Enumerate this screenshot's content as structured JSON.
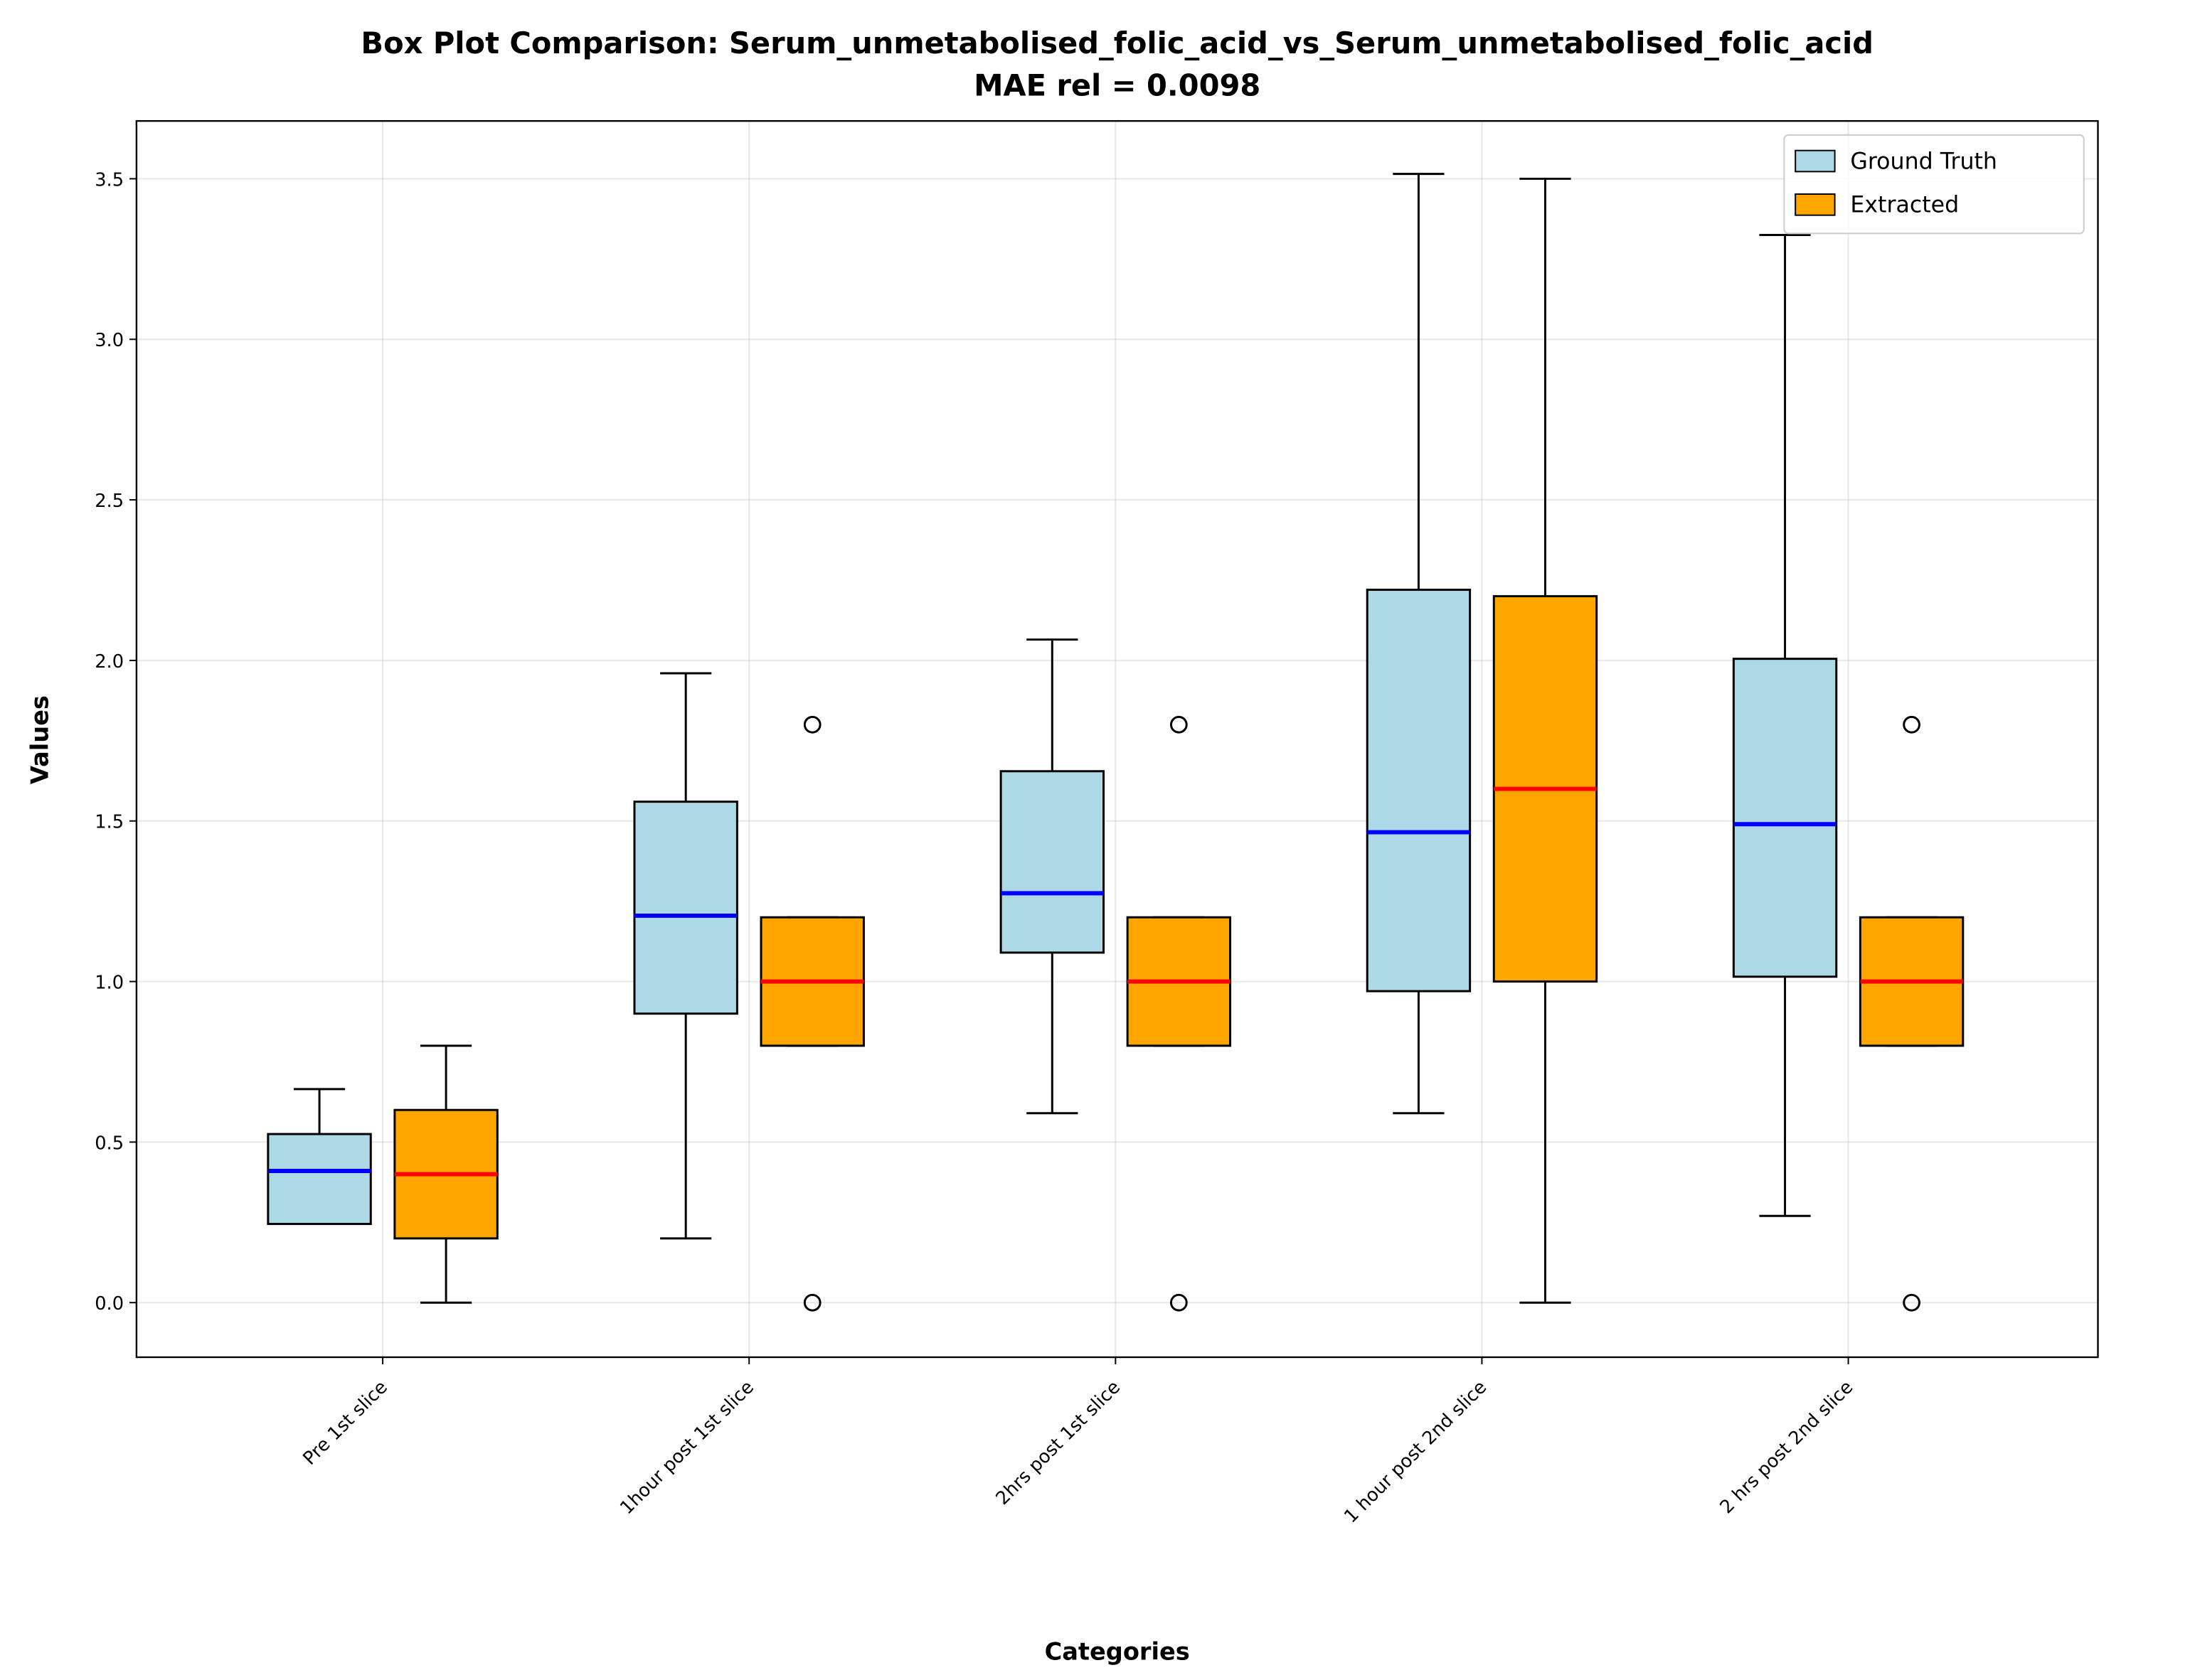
{
  "chart_data": {
    "type": "box",
    "title": "Box Plot Comparison: Serum_unmetabolised_folic_acid_vs_Serum_unmetabolised_folic_acid",
    "subtitle": "MAE rel = 0.0098",
    "x_label": "Categories",
    "y_label": "Values",
    "categories": [
      "Pre 1st slice",
      "1hour post 1st slice",
      "2hrs post 1st slice",
      "1 hour post 2nd slice",
      "2 hrs post 2nd slice"
    ],
    "ylim": [
      -0.17,
      3.68
    ],
    "yticks": [
      {
        "value": 0,
        "label": "0.0"
      },
      0.5,
      {
        "value": 1,
        "label": "1.0"
      },
      1.5,
      {
        "value": 2,
        "label": "2.0"
      },
      2.5,
      {
        "value": 3,
        "label": "3.0"
      },
      3.5
    ],
    "grid": true,
    "legend": "upper right",
    "series": [
      {
        "name": "Ground Truth",
        "color": "#add8e6",
        "median_color": "#0000ff",
        "boxes": [
          {
            "min": 0.245,
            "q1": 0.245,
            "median": 0.41,
            "q3": 0.525,
            "max": 0.665,
            "outliers": []
          },
          {
            "min": 0.2,
            "q1": 0.9,
            "median": 1.205,
            "q3": 1.56,
            "max": 1.96,
            "outliers": []
          },
          {
            "min": 0.59,
            "q1": 1.09,
            "median": 1.275,
            "q3": 1.655,
            "max": 2.065,
            "outliers": []
          },
          {
            "min": 0.59,
            "q1": 0.97,
            "median": 1.465,
            "q3": 2.22,
            "max": 3.515,
            "outliers": []
          },
          {
            "min": 0.27,
            "q1": 1.015,
            "median": 1.49,
            "q3": 2.005,
            "max": 3.325,
            "outliers": []
          }
        ]
      },
      {
        "name": "Extracted",
        "color": "#ffa500",
        "median_color": "#ff0000",
        "boxes": [
          {
            "min": 0,
            "q1": 0.2,
            "median": 0.4,
            "q3": 0.6,
            "max": 0.8,
            "outliers": []
          },
          {
            "min": 0.8,
            "q1": 0.8,
            "median": 1.0,
            "q3": 1.2,
            "max": 1.2,
            "outliers": [
              1.8,
              0
            ]
          },
          {
            "min": 0.8,
            "q1": 0.8,
            "median": 1.0,
            "q3": 1.2,
            "max": 1.2,
            "outliers": [
              1.8,
              0
            ]
          },
          {
            "min": 0,
            "q1": 1.0,
            "median": 1.6,
            "q3": 2.2,
            "max": 3.5,
            "outliers": []
          },
          {
            "min": 0.8,
            "q1": 0.8,
            "median": 1.0,
            "q3": 1.2,
            "max": 1.2,
            "outliers": [
              1.8,
              0
            ]
          }
        ]
      }
    ]
  }
}
